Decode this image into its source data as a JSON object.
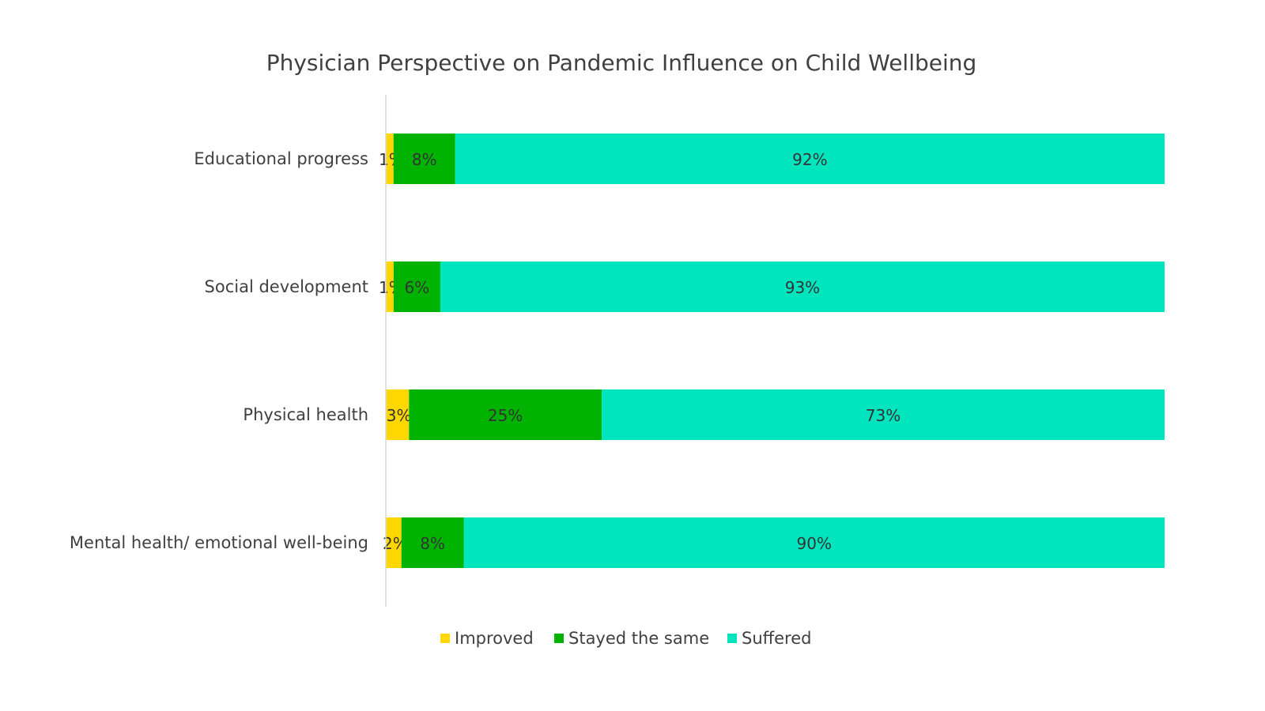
{
  "chart_data": {
    "type": "bar",
    "orientation": "horizontal",
    "stacked": "100%",
    "title": "Physician Perspective on Pandemic Influence on Child Wellbeing",
    "categories": [
      "Educational progress",
      "Social development",
      "Physical health",
      "Mental health/ emotional well-being"
    ],
    "series": [
      {
        "name": "Improved",
        "color": "#FFD700",
        "values": [
          1,
          1,
          3,
          2
        ]
      },
      {
        "name": "Stayed the same",
        "color": "#00B300",
        "values": [
          8,
          6,
          25,
          8
        ]
      },
      {
        "name": "Suffered",
        "color": "#00E5BE",
        "values": [
          92,
          93,
          73,
          90
        ]
      }
    ],
    "value_suffix": "%",
    "grid": false,
    "legend": "bottom"
  }
}
